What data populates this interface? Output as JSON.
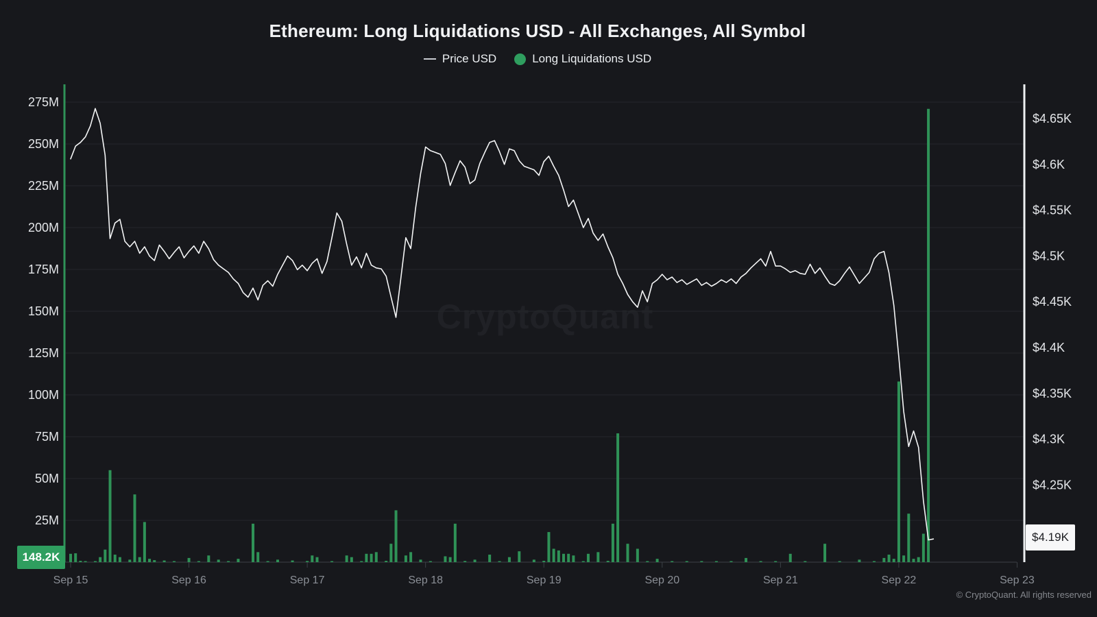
{
  "header": {
    "title": "Ethereum: Long Liquidations USD - All Exchanges, All Symbol"
  },
  "legend": {
    "items": [
      {
        "label": "Price USD",
        "marker": "line",
        "color": "#c9ccd2"
      },
      {
        "label": "Long Liquidations USD",
        "marker": "dot",
        "color": "#2f9e5f"
      }
    ]
  },
  "watermark": "CryptoQuant",
  "footer": "© CryptoQuant. All rights reserved",
  "badges": {
    "liquidation_latest": "148.2K",
    "price_latest": "$4.19K"
  },
  "colors": {
    "background": "#17181c",
    "gridline": "#24262b",
    "bar_green": "#2f9257",
    "badge_green": "#2f9e5f",
    "price_line": "#f4f5f6",
    "left_axis_line": "#2f9257",
    "right_axis_line": "#eef0f2",
    "x_axis_line": "#3c4046",
    "axis_label": "#e4e6e9",
    "date_label": "#8b8f96"
  },
  "chart_data": {
    "type": "mixed",
    "title": "Ethereum: Long Liquidations USD - All Exchanges, All Symbol",
    "x_start": "Sep 15 00:00",
    "x_interval_hours": 1,
    "x_tick_labels": [
      "Sep 15",
      "Sep 16",
      "Sep 17",
      "Sep 18",
      "Sep 19",
      "Sep 20",
      "Sep 21",
      "Sep 22",
      "Sep 23"
    ],
    "left_axis": {
      "name": "Long Liquidations USD",
      "unit": "USD",
      "tick_values_m": [
        25,
        50,
        75,
        100,
        125,
        150,
        175,
        200,
        225,
        250,
        275
      ],
      "tick_labels": [
        "25M",
        "50M",
        "75M",
        "100M",
        "125M",
        "150M",
        "175M",
        "200M",
        "225M",
        "250M",
        "275M"
      ],
      "range_m": [
        0,
        283
      ],
      "latest_value": "148.2K"
    },
    "right_axis": {
      "name": "Price USD",
      "unit": "USD",
      "tick_values_k": [
        4.65,
        4.6,
        4.55,
        4.5,
        4.45,
        4.4,
        4.35,
        4.3,
        4.25
      ],
      "tick_labels": [
        "$4.65K",
        "$4.6K",
        "$4.55K",
        "$4.5K",
        "$4.45K",
        "$4.4K",
        "$4.35K",
        "$4.3K",
        "$4.25K"
      ],
      "range_k": [
        4.155,
        4.688
      ],
      "latest_value": "$4.19K"
    },
    "series": [
      {
        "name": "Price USD",
        "type": "line",
        "axis": "right",
        "unit": "USD thousands",
        "values": [
          4.606,
          4.62,
          4.624,
          4.63,
          4.642,
          4.661,
          4.645,
          4.61,
          4.519,
          4.536,
          4.54,
          4.516,
          4.51,
          4.516,
          4.503,
          4.51,
          4.5,
          4.495,
          4.512,
          4.505,
          4.497,
          4.504,
          4.51,
          4.498,
          4.505,
          4.511,
          4.503,
          4.516,
          4.508,
          4.496,
          4.49,
          4.486,
          4.482,
          4.475,
          4.47,
          4.46,
          4.455,
          4.465,
          4.452,
          4.468,
          4.473,
          4.467,
          4.48,
          4.49,
          4.5,
          4.495,
          4.485,
          4.49,
          4.484,
          4.492,
          4.497,
          4.481,
          4.494,
          4.52,
          4.547,
          4.538,
          4.513,
          4.49,
          4.499,
          4.487,
          4.503,
          4.49,
          4.487,
          4.486,
          4.478,
          4.455,
          4.433,
          4.476,
          4.52,
          4.508,
          4.553,
          4.59,
          4.619,
          4.615,
          4.613,
          4.611,
          4.601,
          4.577,
          4.591,
          4.604,
          4.597,
          4.579,
          4.583,
          4.601,
          4.613,
          4.624,
          4.626,
          4.614,
          4.6,
          4.617,
          4.615,
          4.604,
          4.598,
          4.596,
          4.594,
          4.588,
          4.603,
          4.609,
          4.598,
          4.588,
          4.572,
          4.554,
          4.561,
          4.546,
          4.531,
          4.541,
          4.525,
          4.517,
          4.524,
          4.51,
          4.498,
          4.48,
          4.47,
          4.458,
          4.45,
          4.444,
          4.462,
          4.45,
          4.47,
          4.474,
          4.48,
          4.474,
          4.477,
          4.471,
          4.474,
          4.469,
          4.472,
          4.475,
          4.468,
          4.471,
          4.467,
          4.47,
          4.474,
          4.471,
          4.475,
          4.47,
          4.477,
          4.481,
          4.487,
          4.492,
          4.497,
          4.489,
          4.505,
          4.489,
          4.489,
          4.486,
          4.482,
          4.484,
          4.481,
          4.48,
          4.491,
          4.481,
          4.487,
          4.478,
          4.47,
          4.468,
          4.473,
          4.481,
          4.488,
          4.479,
          4.47,
          4.476,
          4.482,
          4.497,
          4.503,
          4.505,
          4.482,
          4.446,
          4.39,
          4.33,
          4.292,
          4.309,
          4.291,
          4.232,
          4.19,
          4.191
        ]
      },
      {
        "name": "Long Liquidations USD",
        "type": "bar",
        "axis": "left",
        "unit": "USD millions",
        "values": [
          5,
          5.3,
          0.8,
          0.4,
          0,
          0.6,
          3,
          7.5,
          55,
          4.5,
          3,
          0,
          1.5,
          40.5,
          3,
          24,
          2,
          1.2,
          0,
          1,
          0,
          0.4,
          0,
          0,
          2.5,
          0,
          0.5,
          0,
          4,
          0,
          1.5,
          0,
          0.6,
          0,
          2,
          0,
          0,
          23,
          6,
          0,
          0.5,
          0,
          1.5,
          0,
          0,
          1,
          0,
          0,
          0.7,
          4,
          3,
          0,
          0,
          0.5,
          0,
          0,
          4,
          3,
          0,
          0.6,
          5,
          5,
          6,
          0,
          0.8,
          11,
          31,
          0,
          4,
          6,
          0,
          1.5,
          0,
          0.5,
          0,
          0,
          3.5,
          3,
          23,
          0,
          0.7,
          0,
          1.5,
          0,
          0,
          4.5,
          0,
          0.6,
          0,
          3,
          0,
          6.5,
          0,
          0,
          1.5,
          0,
          0.8,
          18,
          8,
          7,
          5,
          5,
          4,
          0,
          0.6,
          5,
          0,
          6,
          0,
          0.8,
          23,
          77,
          0,
          11,
          0,
          8,
          0,
          0.5,
          0,
          2,
          0,
          0,
          0.6,
          0,
          0,
          0.4,
          0,
          0,
          0.5,
          0,
          0,
          0.4,
          0,
          0,
          0.6,
          0,
          0,
          2.5,
          0,
          0,
          0.5,
          0,
          0,
          0.4,
          0,
          0,
          5,
          0,
          0,
          0.5,
          0,
          0,
          0,
          11,
          0,
          0,
          0.4,
          0,
          0,
          0,
          1.5,
          0,
          0,
          0.6,
          0,
          2.5,
          4.5,
          2,
          108,
          4,
          29,
          2,
          3,
          17,
          271,
          0.148
        ]
      }
    ]
  }
}
